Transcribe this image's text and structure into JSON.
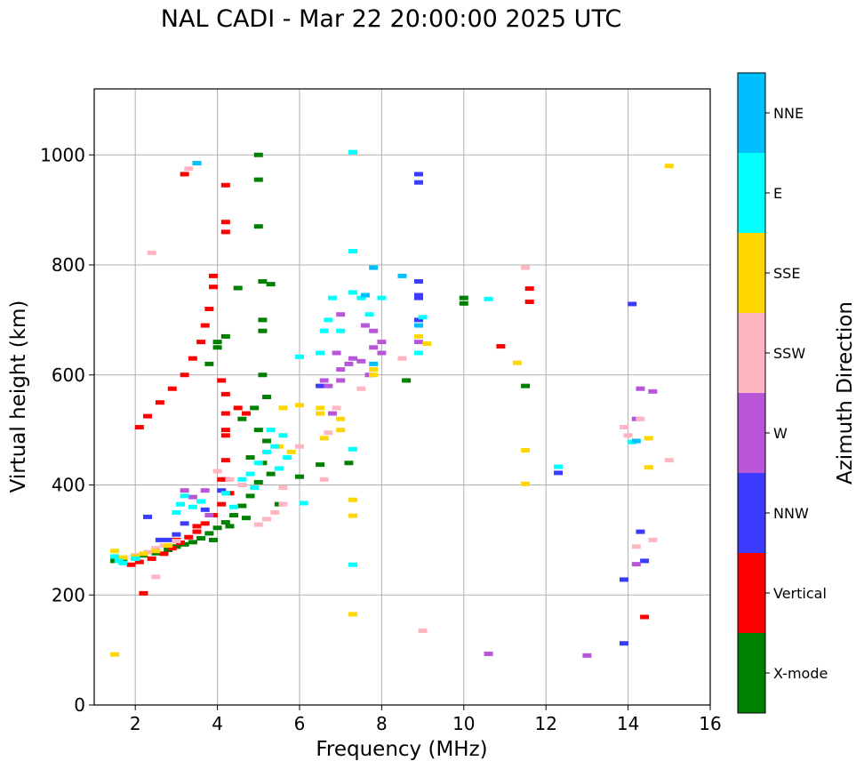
{
  "chart_data": {
    "type": "scatter",
    "title": "NAL CADI - Mar 22 20:00:00 2025 UTC",
    "xlabel": "Frequency (MHz)",
    "ylabel": "Virtual height (km)",
    "xlim": [
      1,
      16
    ],
    "ylim": [
      0,
      1120
    ],
    "xticks": [
      2,
      4,
      6,
      8,
      10,
      12,
      14,
      16
    ],
    "yticks": [
      0,
      200,
      400,
      600,
      800,
      1000
    ],
    "grid": true,
    "colorbar": {
      "label": "Azimuth Direction",
      "categories": [
        {
          "name": "X-mode",
          "color": "#008000"
        },
        {
          "name": "Vertical",
          "color": "#ff0000"
        },
        {
          "name": "NNW",
          "color": "#3b3bff"
        },
        {
          "name": "W",
          "color": "#b956d8"
        },
        {
          "name": "SSW",
          "color": "#ffb6c1"
        },
        {
          "name": "SSE",
          "color": "#ffd700"
        },
        {
          "name": "E",
          "color": "#00ffff"
        },
        {
          "name": "NNE",
          "color": "#00bfff"
        }
      ]
    },
    "series": [
      {
        "name": "X-mode",
        "points": [
          [
            1.5,
            262
          ],
          [
            1.7,
            265
          ],
          [
            2.0,
            268
          ],
          [
            2.2,
            272
          ],
          [
            2.5,
            276
          ],
          [
            2.8,
            282
          ],
          [
            3.0,
            288
          ],
          [
            3.2,
            292
          ],
          [
            3.4,
            296
          ],
          [
            3.6,
            303
          ],
          [
            3.8,
            312
          ],
          [
            4.0,
            322
          ],
          [
            4.2,
            332
          ],
          [
            4.4,
            345
          ],
          [
            4.6,
            362
          ],
          [
            4.8,
            380
          ],
          [
            5.0,
            405
          ],
          [
            5.1,
            440
          ],
          [
            5.2,
            480
          ],
          [
            5.0,
            500
          ],
          [
            4.9,
            540
          ],
          [
            5.2,
            560
          ],
          [
            5.1,
            600
          ],
          [
            4.0,
            650
          ],
          [
            4.0,
            660
          ],
          [
            3.8,
            620
          ],
          [
            4.5,
            758
          ],
          [
            5.1,
            770
          ],
          [
            5.3,
            765
          ],
          [
            5.1,
            700
          ],
          [
            5.1,
            680
          ],
          [
            5.0,
            870
          ],
          [
            5.0,
            1000
          ],
          [
            5.0,
            955
          ],
          [
            6.0,
            415
          ],
          [
            6.5,
            437
          ],
          [
            7.2,
            440
          ],
          [
            8.6,
            590
          ],
          [
            10.0,
            740
          ],
          [
            10.0,
            730
          ],
          [
            11.5,
            580
          ],
          [
            4.6,
            520
          ],
          [
            4.8,
            450
          ],
          [
            5.3,
            420
          ],
          [
            3.9,
            300
          ],
          [
            4.3,
            325
          ],
          [
            4.7,
            340
          ],
          [
            5.5,
            365
          ],
          [
            4.2,
            670
          ]
        ]
      },
      {
        "name": "Vertical",
        "points": [
          [
            1.9,
            255
          ],
          [
            2.1,
            260
          ],
          [
            2.4,
            266
          ],
          [
            2.7,
            275
          ],
          [
            2.9,
            285
          ],
          [
            3.1,
            295
          ],
          [
            3.3,
            305
          ],
          [
            3.5,
            315
          ],
          [
            3.7,
            330
          ],
          [
            3.9,
            345
          ],
          [
            4.1,
            365
          ],
          [
            4.3,
            385
          ],
          [
            4.1,
            410
          ],
          [
            4.2,
            445
          ],
          [
            4.2,
            490
          ],
          [
            4.2,
            500
          ],
          [
            4.2,
            530
          ],
          [
            4.2,
            565
          ],
          [
            2.1,
            505
          ],
          [
            2.3,
            525
          ],
          [
            2.6,
            550
          ],
          [
            2.9,
            575
          ],
          [
            3.2,
            600
          ],
          [
            3.4,
            630
          ],
          [
            3.6,
            660
          ],
          [
            3.7,
            690
          ],
          [
            3.8,
            720
          ],
          [
            3.9,
            760
          ],
          [
            3.9,
            780
          ],
          [
            4.2,
            860
          ],
          [
            4.2,
            878
          ],
          [
            4.2,
            945
          ],
          [
            3.2,
            965
          ],
          [
            4.2,
            410
          ],
          [
            4.1,
            590
          ],
          [
            2.2,
            203
          ],
          [
            11.6,
            757
          ],
          [
            11.6,
            733
          ],
          [
            10.9,
            652
          ],
          [
            14.4,
            160
          ],
          [
            4.7,
            530
          ],
          [
            4.5,
            540
          ],
          [
            3.0,
            300
          ],
          [
            3.5,
            325
          ]
        ]
      },
      {
        "name": "NNW",
        "points": [
          [
            8.9,
            965
          ],
          [
            8.9,
            950
          ],
          [
            8.9,
            770
          ],
          [
            8.9,
            745
          ],
          [
            8.9,
            700
          ],
          [
            8.9,
            740
          ],
          [
            6.5,
            580
          ],
          [
            14.1,
            729
          ],
          [
            12.3,
            422
          ],
          [
            14.4,
            262
          ],
          [
            13.9,
            228
          ],
          [
            13.9,
            112
          ],
          [
            3.0,
            310
          ],
          [
            3.2,
            330
          ],
          [
            3.7,
            355
          ],
          [
            4.1,
            390
          ],
          [
            2.6,
            300
          ],
          [
            2.8,
            300
          ],
          [
            2.3,
            342
          ],
          [
            14.3,
            315
          ]
        ]
      },
      {
        "name": "W",
        "points": [
          [
            7.0,
            590
          ],
          [
            7.0,
            610
          ],
          [
            7.5,
            625
          ],
          [
            7.8,
            680
          ],
          [
            8.0,
            640
          ],
          [
            8.9,
            660
          ],
          [
            8.0,
            660
          ],
          [
            6.6,
            590
          ],
          [
            6.7,
            580
          ],
          [
            6.8,
            530
          ],
          [
            7.8,
            650
          ],
          [
            14.2,
            520
          ],
          [
            14.3,
            575
          ],
          [
            14.6,
            570
          ],
          [
            14.2,
            256
          ],
          [
            13.0,
            90
          ],
          [
            10.6,
            93
          ],
          [
            3.2,
            390
          ],
          [
            3.4,
            378
          ],
          [
            3.7,
            390
          ],
          [
            3.8,
            345
          ],
          [
            7.2,
            620
          ],
          [
            7.3,
            630
          ],
          [
            7.7,
            600
          ],
          [
            7.0,
            710
          ],
          [
            7.6,
            690
          ],
          [
            6.9,
            640
          ]
        ]
      },
      {
        "name": "SSW",
        "points": [
          [
            2.0,
            272
          ],
          [
            2.3,
            278
          ],
          [
            2.5,
            285
          ],
          [
            2.7,
            290
          ],
          [
            3.0,
            298
          ],
          [
            5.0,
            328
          ],
          [
            5.2,
            338
          ],
          [
            5.4,
            350
          ],
          [
            5.6,
            365
          ],
          [
            5.6,
            395
          ],
          [
            6.0,
            470
          ],
          [
            6.6,
            410
          ],
          [
            6.7,
            495
          ],
          [
            6.9,
            540
          ],
          [
            7.5,
            575
          ],
          [
            8.5,
            630
          ],
          [
            9.0,
            135
          ],
          [
            11.5,
            795
          ],
          [
            13.9,
            505
          ],
          [
            14.3,
            520
          ],
          [
            14.2,
            288
          ],
          [
            14.6,
            300
          ],
          [
            15.0,
            445
          ],
          [
            14.0,
            490
          ],
          [
            2.4,
            822
          ],
          [
            3.3,
            975
          ],
          [
            2.5,
            233
          ],
          [
            4.6,
            400
          ],
          [
            4.3,
            410
          ],
          [
            4.0,
            425
          ]
        ]
      },
      {
        "name": "SSE",
        "points": [
          [
            1.5,
            92
          ],
          [
            1.5,
            280
          ],
          [
            1.7,
            268
          ],
          [
            2.0,
            270
          ],
          [
            2.2,
            275
          ],
          [
            2.5,
            280
          ],
          [
            2.8,
            290
          ],
          [
            6.5,
            540
          ],
          [
            6.5,
            530
          ],
          [
            6.6,
            485
          ],
          [
            7.0,
            500
          ],
          [
            7.0,
            520
          ],
          [
            7.3,
            373
          ],
          [
            7.3,
            344
          ],
          [
            7.3,
            165
          ],
          [
            7.8,
            610
          ],
          [
            7.8,
            600
          ],
          [
            8.9,
            670
          ],
          [
            9.1,
            657
          ],
          [
            11.5,
            463
          ],
          [
            11.5,
            402
          ],
          [
            14.5,
            485
          ],
          [
            14.5,
            432
          ],
          [
            15.0,
            980
          ],
          [
            11.3,
            622
          ],
          [
            5.6,
            490
          ],
          [
            5.6,
            540
          ],
          [
            5.5,
            470
          ],
          [
            6.0,
            545
          ],
          [
            5.8,
            460
          ]
        ]
      },
      {
        "name": "E",
        "points": [
          [
            1.5,
            270
          ],
          [
            1.6,
            262
          ],
          [
            1.7,
            258
          ],
          [
            2.0,
            266
          ],
          [
            3.0,
            350
          ],
          [
            3.1,
            365
          ],
          [
            3.2,
            380
          ],
          [
            3.4,
            360
          ],
          [
            3.6,
            370
          ],
          [
            4.2,
            385
          ],
          [
            4.4,
            360
          ],
          [
            4.6,
            410
          ],
          [
            4.8,
            420
          ],
          [
            5.0,
            440
          ],
          [
            5.2,
            460
          ],
          [
            5.4,
            470
          ],
          [
            5.6,
            490
          ],
          [
            5.5,
            430
          ],
          [
            5.7,
            450
          ],
          [
            6.5,
            640
          ],
          [
            6.6,
            680
          ],
          [
            6.7,
            700
          ],
          [
            6.8,
            740
          ],
          [
            7.0,
            680
          ],
          [
            7.3,
            750
          ],
          [
            7.5,
            740
          ],
          [
            7.7,
            710
          ],
          [
            8.0,
            740
          ],
          [
            8.9,
            640
          ],
          [
            9.0,
            705
          ],
          [
            7.3,
            255
          ],
          [
            7.3,
            465
          ],
          [
            7.3,
            1005
          ],
          [
            7.3,
            825
          ],
          [
            10.6,
            738
          ],
          [
            14.1,
            478
          ],
          [
            12.3,
            433
          ],
          [
            6.1,
            367
          ],
          [
            6.0,
            633
          ],
          [
            5.3,
            500
          ],
          [
            4.9,
            395
          ]
        ]
      },
      {
        "name": "NNE",
        "points": [
          [
            7.8,
            795
          ],
          [
            8.5,
            780
          ],
          [
            7.6,
            745
          ],
          [
            8.9,
            690
          ],
          [
            7.8,
            620
          ],
          [
            14.2,
            480
          ],
          [
            3.5,
            985
          ]
        ]
      }
    ]
  }
}
